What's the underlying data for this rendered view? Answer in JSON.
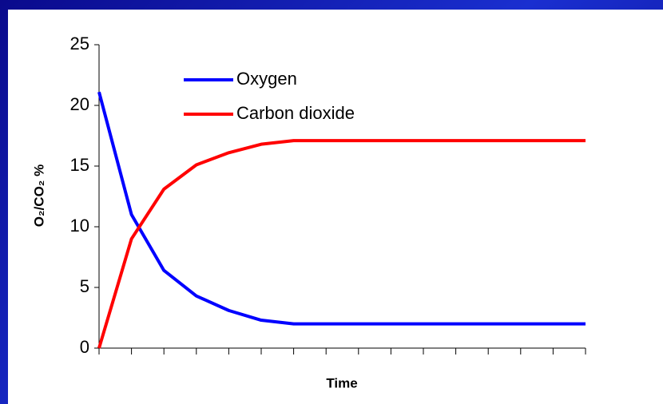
{
  "chart_data": {
    "type": "line",
    "xlabel": "Time",
    "ylabel": "O₂/CO₂ %",
    "categories": [
      null,
      null,
      null,
      null,
      null,
      null,
      null,
      null,
      null,
      null,
      null,
      null,
      null,
      null,
      null,
      null
    ],
    "series": [
      {
        "name": "Oxygen",
        "color": "#0000ff",
        "values": [
          21.1,
          11,
          6.4,
          4.3,
          3.1,
          2.3,
          2.0,
          2.0,
          2.0,
          2.0,
          2.0,
          2.0,
          2.0,
          2.0,
          2.0,
          2.0
        ]
      },
      {
        "name": "Carbon dioxide",
        "color": "#ff0000",
        "values": [
          0,
          9,
          13.1,
          15.1,
          16.1,
          16.8,
          17.1,
          17.1,
          17.1,
          17.1,
          17.1,
          17.1,
          17.1,
          17.1,
          17.1,
          17.1
        ]
      }
    ],
    "ylim": [
      0,
      25
    ],
    "yticks": [
      0,
      5,
      10,
      15,
      20,
      25
    ],
    "grid": false,
    "legend": "upper center"
  }
}
